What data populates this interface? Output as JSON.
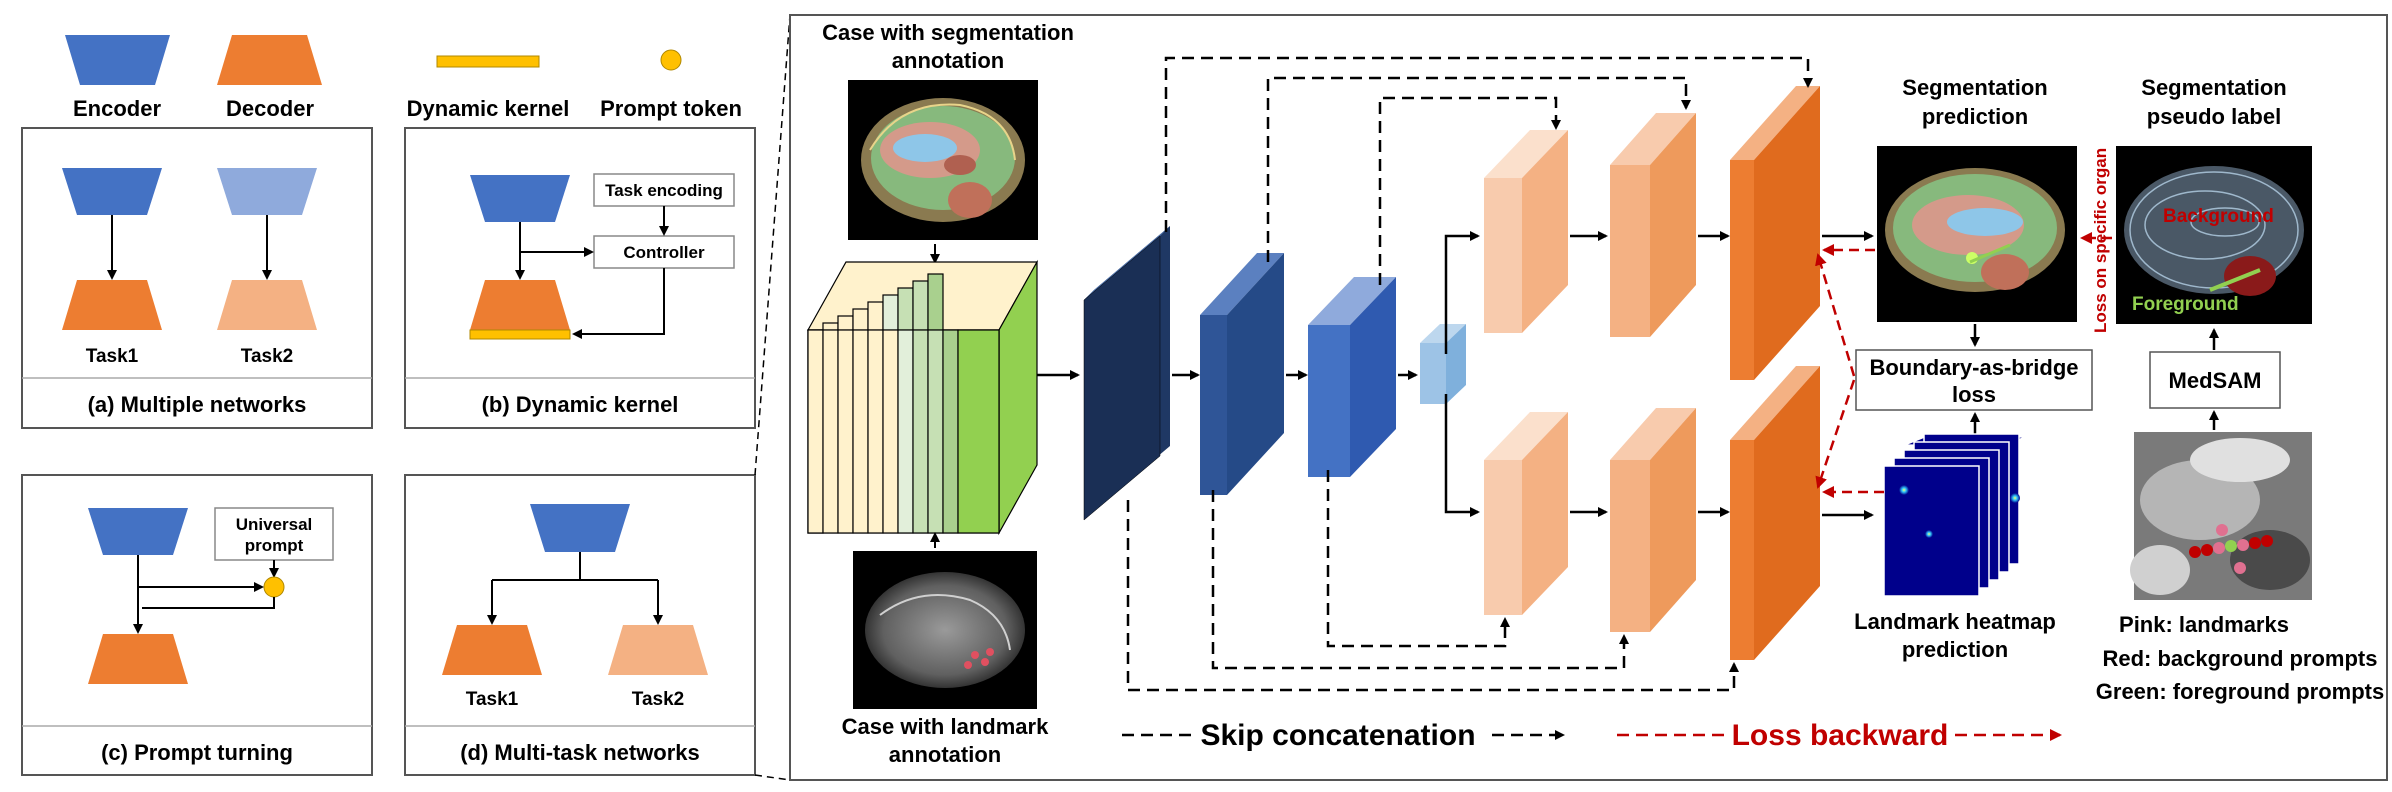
{
  "legend": {
    "encoder": "Encoder",
    "decoder": "Decoder",
    "dynamic_kernel": "Dynamic kernel",
    "prompt_token": "Prompt token"
  },
  "panel_a": {
    "task1": "Task1",
    "task2": "Task2",
    "caption": "(a) Multiple networks"
  },
  "panel_b": {
    "task_encoding": "Task encoding",
    "controller": "Controller",
    "caption": "(b) Dynamic kernel"
  },
  "panel_c": {
    "prompt_line1": "Universal",
    "prompt_line2": "prompt",
    "caption": "(c) Prompt turning"
  },
  "panel_d": {
    "task1": "Task1",
    "task2": "Task2",
    "caption": "(d) Multi-task networks"
  },
  "main": {
    "seg_case_line1": "Case with segmentation",
    "seg_case_line2": "annotation",
    "lm_case_line1": "Case with landmark",
    "lm_case_line2": "annotation",
    "seg_pred_line1": "Segmentation",
    "seg_pred_line2": "prediction",
    "pseudo_line1": "Segmentation",
    "pseudo_line2": "pseudo label",
    "loss_specific": "Loss on specific organ",
    "background": "Background",
    "foreground": "Foreground",
    "bab_line1": "Boundary-as-bridge",
    "bab_line2": "loss",
    "medsam": "MedSAM",
    "heatmap_line1": "Landmark heatmap",
    "heatmap_line2": "prediction",
    "pink": "Pink: landmarks",
    "red": "Red: background prompts",
    "green": "Green: foreground prompts",
    "skip_legend": "Skip concatenation",
    "loss_legend": "Loss backward"
  },
  "colors": {
    "encoder": "#4472C4",
    "decoder": "#ED7D31",
    "kernel": "#FFC000",
    "loss": "#C00000",
    "heatmap_bg": "#00008B"
  }
}
